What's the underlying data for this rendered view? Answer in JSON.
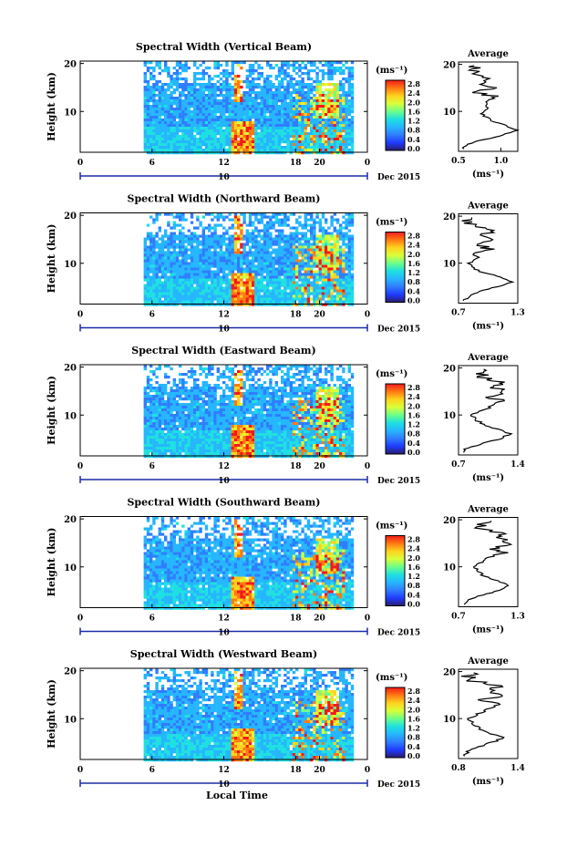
{
  "figure": {
    "xlabel": "Local Time",
    "date_label": "Dec 2015",
    "date_tick_label": "10",
    "unit_label": "(ms⁻¹)",
    "colorbar_ticks": [
      "2.8",
      "2.4",
      "2.0",
      "1.6",
      "1.2",
      "0.8",
      "0.4",
      "0.0"
    ],
    "colors": {
      "colormap": [
        "#2a1a6e",
        "#1e3cff",
        "#2f7dff",
        "#25b6ff",
        "#1fe0e0",
        "#6cff88",
        "#d8ff3a",
        "#ffd21f",
        "#ff7a12",
        "#f21a1a"
      ],
      "time_bar": "#1c2aa8"
    }
  },
  "chart_data": [
    {
      "type": "heatmap",
      "title": "Spectral Width (Vertical Beam)",
      "xlabel": "",
      "ylabel": "Height (km)",
      "xlim": [
        0,
        24
      ],
      "ylim": [
        1.5,
        20.5
      ],
      "xticks": [
        "0",
        "6",
        "12",
        "18",
        "20",
        "0"
      ],
      "yticks": [
        "10",
        "20"
      ],
      "data_start_hour": 5.3,
      "data_end_hour": 22.8,
      "color_unit": "(ms⁻¹)",
      "color_range": [
        0.0,
        2.8
      ],
      "average_profile": {
        "title": "Average",
        "xlabel": "(ms⁻¹)",
        "xlim": [
          0.5,
          1.2
        ],
        "xtick_labels": [
          "0.5",
          "1.0"
        ],
        "height": [
          2,
          3,
          4,
          5,
          6,
          7,
          8,
          9,
          10,
          11,
          12,
          13,
          14,
          15,
          16,
          17,
          18,
          19,
          20
        ],
        "width": [
          0.55,
          0.6,
          0.8,
          1.02,
          1.18,
          1.05,
          0.9,
          0.8,
          0.78,
          0.85,
          0.8,
          0.95,
          0.75,
          0.9,
          0.8,
          0.92,
          0.7,
          0.65,
          0.75
        ]
      }
    },
    {
      "type": "heatmap",
      "title": "Spectral Width (Northward Beam)",
      "xlabel": "",
      "ylabel": "Height (km)",
      "xlim": [
        0,
        24
      ],
      "ylim": [
        1.5,
        20.5
      ],
      "xticks": [
        "0",
        "6",
        "12",
        "18",
        "20",
        "0"
      ],
      "yticks": [
        "10",
        "20"
      ],
      "data_start_hour": 5.3,
      "data_end_hour": 22.8,
      "color_unit": "(ms⁻¹)",
      "color_range": [
        0.0,
        2.8
      ],
      "average_profile": {
        "title": "Average",
        "xlabel": "(ms⁻¹)",
        "xlim": [
          0.7,
          1.3
        ],
        "xtick_labels": [
          "0.7",
          "1.3"
        ],
        "height": [
          2,
          3,
          4,
          5,
          6,
          7,
          8,
          9,
          10,
          11,
          12,
          13,
          14,
          15,
          16,
          17,
          18,
          19,
          20
        ],
        "width": [
          0.75,
          0.8,
          0.9,
          1.1,
          1.25,
          1.15,
          0.95,
          0.85,
          0.8,
          0.9,
          0.85,
          1.0,
          0.9,
          1.1,
          0.95,
          1.05,
          0.85,
          0.8,
          0.9
        ]
      }
    },
    {
      "type": "heatmap",
      "title": "Spectral Width (Eastward Beam)",
      "xlabel": "",
      "ylabel": "Height (km)",
      "xlim": [
        0,
        24
      ],
      "ylim": [
        1.5,
        20.5
      ],
      "xticks": [
        "0",
        "6",
        "12",
        "18",
        "20",
        "0"
      ],
      "yticks": [
        "10",
        "20"
      ],
      "data_start_hour": 5.3,
      "data_end_hour": 22.8,
      "color_unit": "(ms⁻¹)",
      "color_range": [
        0.0,
        2.8
      ],
      "average_profile": {
        "title": "Average",
        "xlabel": "(ms⁻¹)",
        "xlim": [
          0.7,
          1.4
        ],
        "xtick_labels": [
          "0.7",
          "1.4"
        ],
        "height": [
          2,
          3,
          4,
          5,
          6,
          7,
          8,
          9,
          10,
          11,
          12,
          13,
          14,
          15,
          16,
          17,
          18,
          19,
          20
        ],
        "width": [
          0.75,
          0.8,
          1.0,
          1.2,
          1.3,
          1.15,
          1.0,
          0.9,
          0.85,
          1.0,
          1.1,
          1.2,
          1.05,
          1.25,
          1.1,
          1.2,
          1.0,
          0.95,
          1.05
        ]
      }
    },
    {
      "type": "heatmap",
      "title": "Spectral Width (Southward Beam)",
      "xlabel": "",
      "ylabel": "Height (km)",
      "xlim": [
        0,
        24
      ],
      "ylim": [
        1.5,
        20.5
      ],
      "xticks": [
        "0",
        "6",
        "12",
        "18",
        "20",
        "0"
      ],
      "yticks": [
        "10",
        "20"
      ],
      "data_start_hour": 5.3,
      "data_end_hour": 22.8,
      "color_unit": "(ms⁻¹)",
      "color_range": [
        0.0,
        2.8
      ],
      "average_profile": {
        "title": "Average",
        "xlabel": "(ms⁻¹)",
        "xlim": [
          0.7,
          1.3
        ],
        "xtick_labels": [
          "0.7",
          "1.3"
        ],
        "height": [
          2,
          3,
          4,
          5,
          6,
          7,
          8,
          9,
          10,
          11,
          12,
          13,
          14,
          15,
          16,
          17,
          18,
          19,
          20
        ],
        "width": [
          0.75,
          0.8,
          0.95,
          1.1,
          1.2,
          1.1,
          0.95,
          0.9,
          0.85,
          0.95,
          1.0,
          1.15,
          1.05,
          1.25,
          1.1,
          1.2,
          0.95,
          0.9,
          1.0
        ]
      }
    },
    {
      "type": "heatmap",
      "title": "Spectral Width (Westward Beam)",
      "xlabel": "Local Time",
      "ylabel": "Height (km)",
      "xlim": [
        0,
        24
      ],
      "ylim": [
        1.5,
        20.5
      ],
      "xticks": [
        "0",
        "6",
        "12",
        "18",
        "20",
        "0"
      ],
      "yticks": [
        "10",
        "20"
      ],
      "data_start_hour": 5.3,
      "data_end_hour": 22.8,
      "color_unit": "(ms⁻¹)",
      "color_range": [
        0.0,
        2.8
      ],
      "average_profile": {
        "title": "Average",
        "xlabel": "(ms⁻¹)",
        "xlim": [
          0.8,
          1.4
        ],
        "xtick_labels": [
          "0.8",
          "1.4"
        ],
        "height": [
          2,
          3,
          4,
          5,
          6,
          7,
          8,
          9,
          10,
          11,
          12,
          13,
          14,
          15,
          16,
          17,
          18,
          19,
          20
        ],
        "width": [
          0.85,
          0.9,
          1.0,
          1.15,
          1.25,
          1.1,
          1.0,
          0.95,
          0.9,
          1.0,
          1.1,
          1.2,
          1.05,
          1.25,
          1.1,
          1.2,
          0.95,
          0.9,
          1.0
        ]
      }
    }
  ]
}
